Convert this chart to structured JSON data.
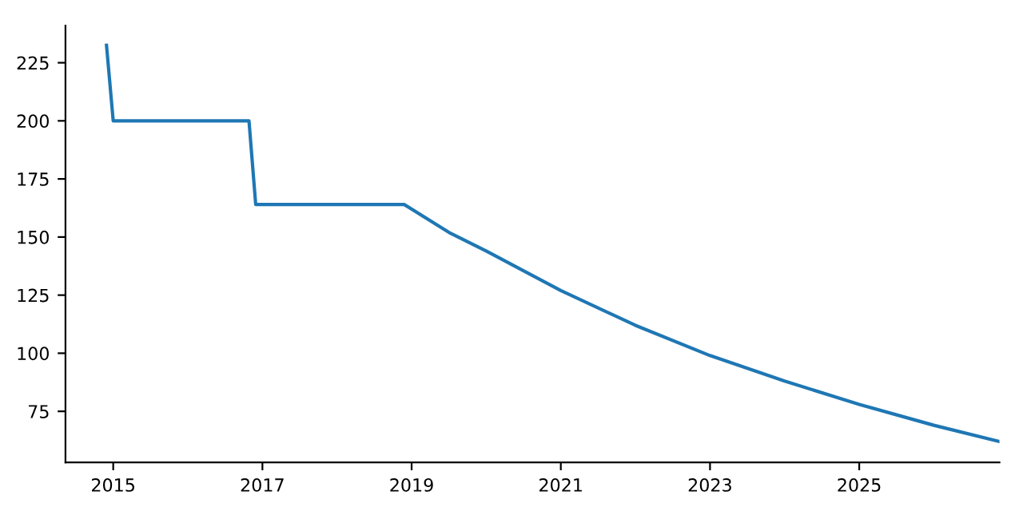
{
  "chart_data": {
    "type": "line",
    "x": [
      2014.91,
      2015.0,
      2016.82,
      2016.91,
      2018.9,
      2019.5,
      2020,
      2021,
      2022,
      2023,
      2024,
      2025,
      2026,
      2026.88
    ],
    "series": [
      {
        "color": "#1f77b4",
        "values": [
          232.5,
          200,
          200,
          164,
          164,
          152,
          144,
          127,
          112,
          99,
          88,
          78,
          69,
          62
        ]
      }
    ],
    "xlim": [
      2014.36,
      2026.88
    ],
    "ylim": [
      53,
      241
    ],
    "xticks": [
      2015,
      2017,
      2019,
      2021,
      2023,
      2025
    ],
    "yticks": [
      75,
      100,
      125,
      150,
      175,
      200,
      225
    ],
    "grid": false,
    "marker": "none",
    "line_style": "solid"
  }
}
